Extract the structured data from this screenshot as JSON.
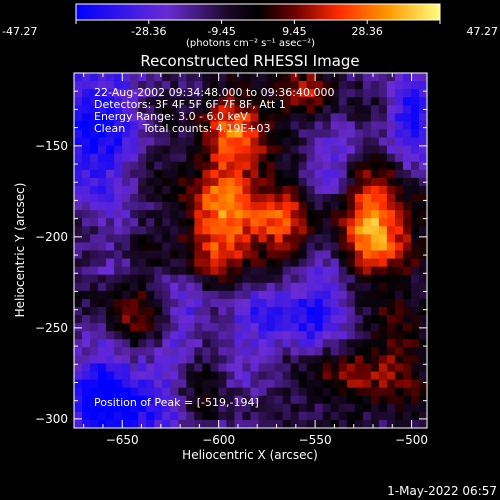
{
  "colorbar": {
    "ticks": [
      "-47.27",
      "-28.36",
      "-9.45",
      "9.45",
      "28.36",
      "47.27"
    ],
    "unit": "(photons cm⁻² s⁻¹ asec⁻²)",
    "vmin": -47.27,
    "vmax": 47.27
  },
  "chart_data": {
    "type": "heatmap",
    "title": "Reconstructed RHESSI Image",
    "xlabel": "Heliocentric X (arcsec)",
    "ylabel": "Heliocentric Y (arcsec)",
    "xlim": [
      -675,
      -492
    ],
    "ylim": [
      -305,
      -110
    ],
    "xticks": [
      -650,
      -600,
      -550,
      -500
    ],
    "yticks": [
      -150,
      -200,
      -250,
      -300
    ],
    "info_lines": [
      "22-Aug-2002 09:34:48.000 to 09:36:40.000",
      "Detectors: 3F 4F 5F 6F 7F 8F, Att 1",
      "Energy Range: 3.0 - 6.0 keV",
      "Clean     Total counts: 4.19E+03"
    ],
    "peak_label": "Position of Peak = [-519,-194]",
    "peak": {
      "x": -519,
      "y": -194,
      "value": 47.27
    },
    "sources": [
      {
        "x": -519,
        "y": -194,
        "amp": 47.0,
        "sx": 14,
        "sy": 22
      },
      {
        "x": -598,
        "y": -192,
        "amp": 40.0,
        "sx": 16,
        "sy": 26
      },
      {
        "x": -590,
        "y": -140,
        "amp": 30.0,
        "sx": 14,
        "sy": 16
      },
      {
        "x": -568,
        "y": -195,
        "amp": 28.0,
        "sx": 12,
        "sy": 22
      },
      {
        "x": -640,
        "y": -248,
        "amp": 26.0,
        "sx": 14,
        "sy": 14
      },
      {
        "x": -540,
        "y": -275,
        "amp": 22.0,
        "sx": 18,
        "sy": 14
      },
      {
        "x": -510,
        "y": -262,
        "amp": 22.0,
        "sx": 10,
        "sy": 26
      },
      {
        "x": -555,
        "y": -120,
        "amp": 20.0,
        "sx": 12,
        "sy": 10
      },
      {
        "x": -610,
        "y": -280,
        "amp": 14.0,
        "sx": 8,
        "sy": 14
      },
      {
        "x": -665,
        "y": -140,
        "amp": -35.0,
        "sx": 14,
        "sy": 30
      },
      {
        "x": -655,
        "y": -288,
        "amp": -40.0,
        "sx": 22,
        "sy": 20
      },
      {
        "x": -560,
        "y": -240,
        "amp": -30.0,
        "sx": 26,
        "sy": 22
      },
      {
        "x": -620,
        "y": -245,
        "amp": -22.0,
        "sx": 12,
        "sy": 14
      },
      {
        "x": -500,
        "y": -135,
        "amp": -28.0,
        "sx": 10,
        "sy": 18
      },
      {
        "x": -545,
        "y": -160,
        "amp": -20.0,
        "sx": 14,
        "sy": 12
      }
    ]
  },
  "timestamp": "1-May-2022 06:57"
}
